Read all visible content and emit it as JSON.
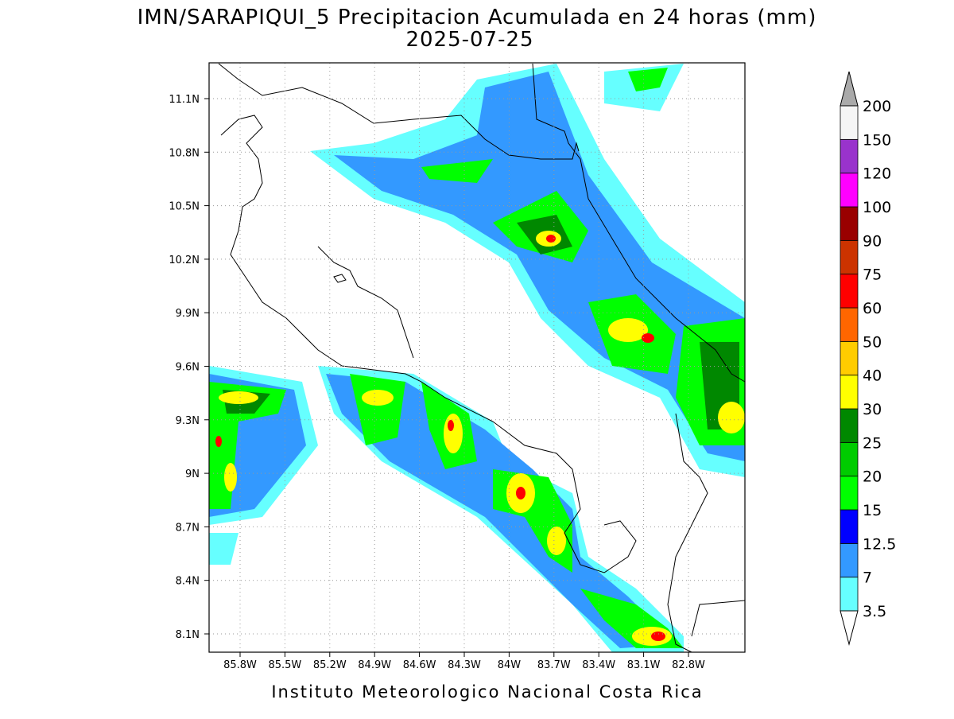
{
  "title": "IMN/SARAPIQUI_5 Precipitacion Acumulada en 24 horas (mm)",
  "subtitle": "2025-07-25",
  "map": {
    "lat_labels": [
      "11.1N",
      "10.8N",
      "10.5N",
      "10.2N",
      "9.9N",
      "9.6N",
      "9.3N",
      "9N",
      "8.7N",
      "8.4N",
      "8.1N"
    ],
    "lon_labels": [
      "85.8W",
      "85.5W",
      "85.2W",
      "84.9W",
      "84.6W",
      "84.3W",
      "84W",
      "83.7W",
      "83.4W",
      "83.1W",
      "82.8W"
    ]
  },
  "colorbar": {
    "labels": [
      "3.5",
      "7",
      "12.5",
      "15",
      "20",
      "25",
      "30",
      "40",
      "50",
      "60",
      "75",
      "90",
      "100",
      "120",
      "150",
      "200"
    ],
    "colors": [
      "#66ffff",
      "#3399ff",
      "#0000ff",
      "#00ff00",
      "#00cc00",
      "#008800",
      "#ffff00",
      "#ffcc00",
      "#ff6600",
      "#ff0000",
      "#cc3300",
      "#990000",
      "#ff00ff",
      "#9933cc",
      "#f5f5f5"
    ],
    "over_color": "#aaaaaa",
    "under_color": "#ffffff"
  },
  "footer": "Instituto Meteorologico Nacional Costa Rica"
}
